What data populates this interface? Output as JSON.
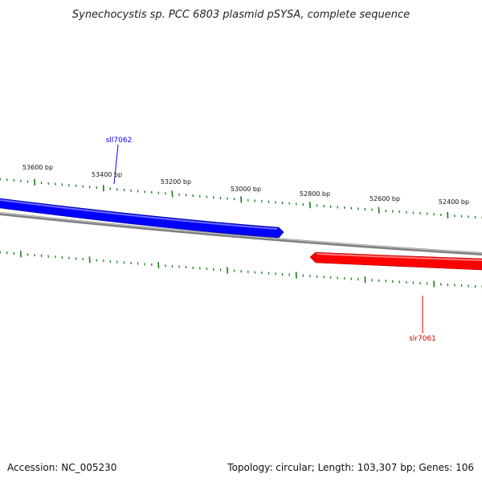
{
  "title": "Synechocystis sp. PCC 6803 plasmid pSYSA, complete sequence",
  "footer": {
    "accession": "Accession: NC_005230",
    "summary": "Topology: circular; Length: 103,307 bp; Genes: 106"
  },
  "scale": {
    "tick_labels": [
      "53600 bp",
      "53400 bp",
      "53200 bp",
      "53000 bp",
      "52800 bp",
      "52600 bp",
      "52400 bp"
    ]
  },
  "genes": [
    {
      "name": "sll7062",
      "strand": "forward",
      "color": "#0000ff"
    },
    {
      "name": "slr7061",
      "strand": "reverse",
      "color": "#ff0000"
    }
  ],
  "colors": {
    "backbone": "#808080",
    "ticks": "#1a7a1a"
  }
}
